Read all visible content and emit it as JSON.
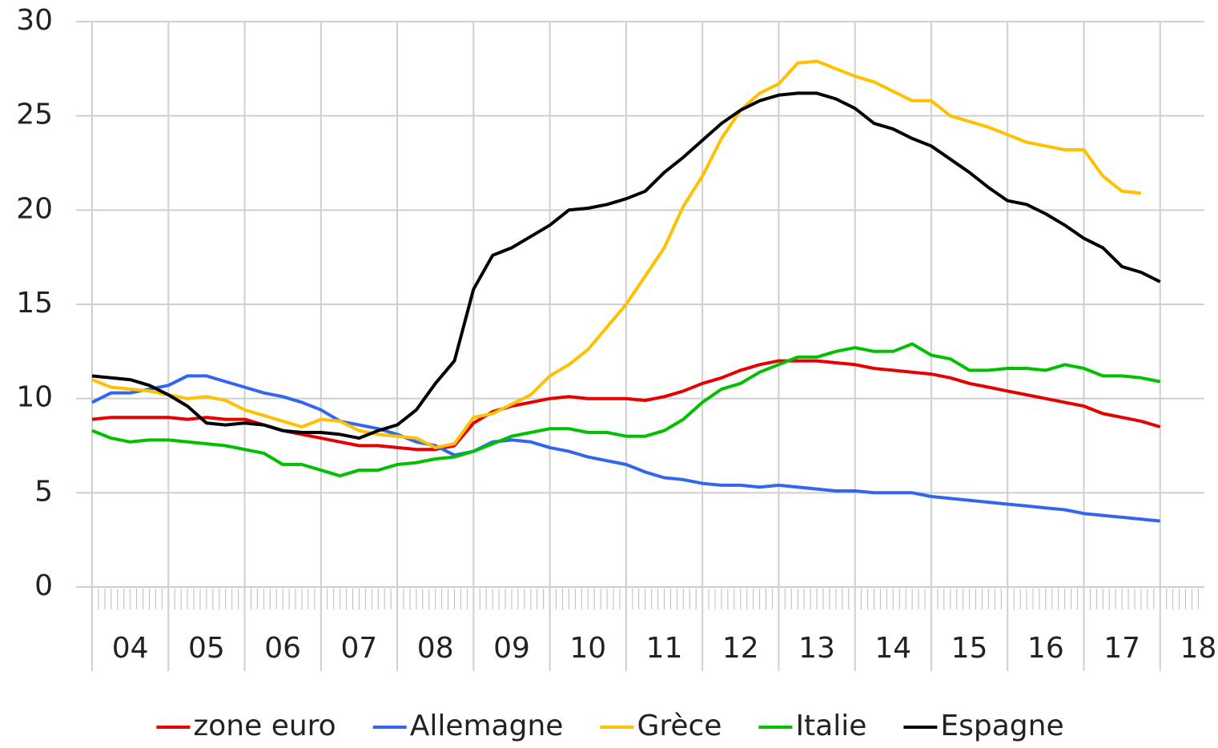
{
  "chart_data": {
    "type": "line",
    "x": [
      2004,
      2004.25,
      2004.5,
      2004.75,
      2005,
      2005.25,
      2005.5,
      2005.75,
      2006,
      2006.25,
      2006.5,
      2006.75,
      2007,
      2007.25,
      2007.5,
      2007.75,
      2008,
      2008.25,
      2008.5,
      2008.75,
      2009,
      2009.25,
      2009.5,
      2009.75,
      2010,
      2010.25,
      2010.5,
      2010.75,
      2011,
      2011.25,
      2011.5,
      2011.75,
      2012,
      2012.25,
      2012.5,
      2012.75,
      2013,
      2013.25,
      2013.5,
      2013.75,
      2014,
      2014.25,
      2014.5,
      2014.75,
      2015,
      2015.25,
      2015.5,
      2015.75,
      2016,
      2016.25,
      2016.5,
      2016.75,
      2017,
      2017.25,
      2017.5,
      2017.75,
      2018
    ],
    "series": [
      {
        "name": "zone euro",
        "color": "#e60000",
        "values": [
          8.9,
          9.0,
          9.0,
          9.0,
          9.0,
          8.9,
          9.0,
          8.9,
          8.9,
          8.6,
          8.3,
          8.1,
          7.9,
          7.7,
          7.5,
          7.5,
          7.4,
          7.3,
          7.3,
          7.5,
          8.7,
          9.3,
          9.6,
          9.8,
          10.0,
          10.1,
          10.0,
          10.0,
          10.0,
          9.9,
          10.1,
          10.4,
          10.8,
          11.1,
          11.5,
          11.8,
          12.0,
          12.0,
          12.0,
          11.9,
          11.8,
          11.6,
          11.5,
          11.4,
          11.3,
          11.1,
          10.8,
          10.6,
          10.4,
          10.2,
          10.0,
          9.8,
          9.6,
          9.2,
          9.0,
          8.8,
          8.5
        ]
      },
      {
        "name": "Allemagne",
        "color": "#3366ee",
        "values": [
          9.8,
          10.3,
          10.3,
          10.5,
          10.7,
          11.2,
          11.2,
          10.9,
          10.6,
          10.3,
          10.1,
          9.8,
          9.4,
          8.8,
          8.6,
          8.4,
          8.1,
          7.7,
          7.5,
          7.0,
          7.2,
          7.7,
          7.8,
          7.7,
          7.4,
          7.2,
          6.9,
          6.7,
          6.5,
          6.1,
          5.8,
          5.7,
          5.5,
          5.4,
          5.4,
          5.3,
          5.4,
          5.3,
          5.2,
          5.1,
          5.1,
          5.0,
          5.0,
          5.0,
          4.8,
          4.7,
          4.6,
          4.5,
          4.4,
          4.3,
          4.2,
          4.1,
          3.9,
          3.8,
          3.7,
          3.6,
          3.5
        ]
      },
      {
        "name": "Grèce",
        "color": "#ffc000",
        "values": [
          11.0,
          10.6,
          10.5,
          10.4,
          10.2,
          10.0,
          10.1,
          9.9,
          9.4,
          9.1,
          8.8,
          8.5,
          8.9,
          8.8,
          8.3,
          8.1,
          8.0,
          7.9,
          7.4,
          7.6,
          9.0,
          9.2,
          9.7,
          10.2,
          11.2,
          11.8,
          12.6,
          13.8,
          15.0,
          16.5,
          18.0,
          20.2,
          21.8,
          23.8,
          25.3,
          26.2,
          26.7,
          27.8,
          27.9,
          27.5,
          27.1,
          26.8,
          26.3,
          25.8,
          25.8,
          25.0,
          24.7,
          24.4,
          24.0,
          23.6,
          23.4,
          23.2,
          23.2,
          21.8,
          21.0,
          20.9,
          null
        ]
      },
      {
        "name": "Italie",
        "color": "#00c000",
        "values": [
          8.3,
          7.9,
          7.7,
          7.8,
          7.8,
          7.7,
          7.6,
          7.5,
          7.3,
          7.1,
          6.5,
          6.5,
          6.2,
          5.9,
          6.2,
          6.2,
          6.5,
          6.6,
          6.8,
          6.9,
          7.2,
          7.6,
          8.0,
          8.2,
          8.4,
          8.4,
          8.2,
          8.2,
          8.0,
          8.0,
          8.3,
          8.9,
          9.8,
          10.5,
          10.8,
          11.4,
          11.8,
          12.2,
          12.2,
          12.5,
          12.7,
          12.5,
          12.5,
          12.9,
          12.3,
          12.1,
          11.5,
          11.5,
          11.6,
          11.6,
          11.5,
          11.8,
          11.6,
          11.2,
          11.2,
          11.1,
          10.9
        ]
      },
      {
        "name": "Espagne",
        "color": "#000000",
        "values": [
          11.2,
          11.1,
          11.0,
          10.7,
          10.2,
          9.6,
          8.7,
          8.6,
          8.7,
          8.6,
          8.3,
          8.2,
          8.2,
          8.1,
          7.9,
          8.3,
          8.6,
          9.4,
          10.8,
          12.0,
          15.8,
          17.6,
          18.0,
          18.6,
          19.2,
          20.0,
          20.1,
          20.3,
          20.6,
          21.0,
          22.0,
          22.8,
          23.7,
          24.6,
          25.3,
          25.8,
          26.1,
          26.2,
          26.2,
          25.9,
          25.4,
          24.6,
          24.3,
          23.8,
          23.4,
          22.7,
          22.0,
          21.2,
          20.5,
          20.3,
          19.8,
          19.2,
          18.5,
          18.0,
          17.0,
          16.7,
          16.2
        ]
      }
    ],
    "xlim": [
      2004,
      2018.58
    ],
    "xticks": [
      {
        "value": 2004.5,
        "label": "04"
      },
      {
        "value": 2005.5,
        "label": "05"
      },
      {
        "value": 2006.5,
        "label": "06"
      },
      {
        "value": 2007.5,
        "label": "07"
      },
      {
        "value": 2008.5,
        "label": "08"
      },
      {
        "value": 2009.5,
        "label": "09"
      },
      {
        "value": 2010.5,
        "label": "10"
      },
      {
        "value": 2011.5,
        "label": "11"
      },
      {
        "value": 2012.5,
        "label": "12"
      },
      {
        "value": 2013.5,
        "label": "13"
      },
      {
        "value": 2014.5,
        "label": "14"
      },
      {
        "value": 2015.5,
        "label": "15"
      },
      {
        "value": 2016.5,
        "label": "16"
      },
      {
        "value": 2017.5,
        "label": "17"
      },
      {
        "value": 2018.5,
        "label": "18"
      }
    ],
    "ylim": [
      0,
      30
    ],
    "yticks": [
      0,
      5,
      10,
      15,
      20,
      25,
      30
    ],
    "grid": true,
    "legend": "bottom"
  }
}
